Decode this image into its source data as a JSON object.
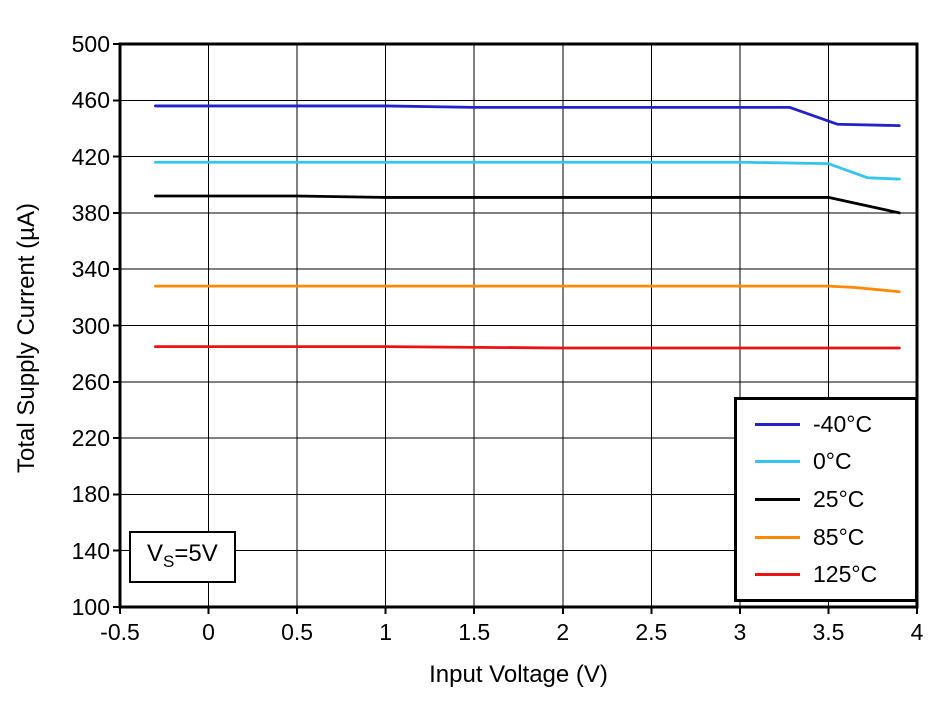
{
  "figure": {
    "background": "#ffffff",
    "axis_color": "#000000",
    "grid_color": "#000000"
  },
  "chart_data": {
    "type": "line",
    "title": "",
    "xlabel": "Input Voltage (V)",
    "ylabel": "Total Supply Current (µA)",
    "xlim": [
      -0.5,
      4
    ],
    "ylim": [
      100,
      500
    ],
    "xtick_values": [
      -0.5,
      0,
      0.5,
      1,
      1.5,
      2,
      2.5,
      3,
      3.5,
      4
    ],
    "xtick_labels": [
      "-0.5",
      "0",
      "0.5",
      "1",
      "1.5",
      "2",
      "2.5",
      "3",
      "3.5",
      "4"
    ],
    "ytick_values": [
      100,
      140,
      180,
      220,
      260,
      300,
      340,
      380,
      420,
      460,
      500
    ],
    "ytick_labels": [
      "100",
      "140",
      "180",
      "220",
      "260",
      "300",
      "340",
      "380",
      "420",
      "460",
      "500"
    ],
    "grid": true,
    "legend_position": "bottom-right",
    "annotation": {
      "prefix": "V",
      "sub": "S",
      "suffix": "=5V"
    },
    "series": [
      {
        "name": "-40°C",
        "color": "#2222CC",
        "x": [
          -0.3,
          0,
          0.5,
          1,
          1.5,
          2,
          2.5,
          3,
          3.28,
          3.55,
          3.9
        ],
        "y": [
          456,
          456,
          456,
          456,
          455,
          455,
          455,
          455,
          455,
          443,
          442
        ]
      },
      {
        "name": "0°C",
        "color": "#33C4F0",
        "x": [
          -0.3,
          0,
          0.5,
          1,
          1.5,
          2,
          2.5,
          3,
          3.5,
          3.72,
          3.9
        ],
        "y": [
          416,
          416,
          416,
          416,
          416,
          416,
          416,
          416,
          415,
          405,
          404
        ]
      },
      {
        "name": "25°C",
        "color": "#000000",
        "x": [
          -0.3,
          0,
          0.5,
          1,
          1.5,
          2,
          2.5,
          3,
          3.5,
          3.9
        ],
        "y": [
          392,
          392,
          392,
          391,
          391,
          391,
          391,
          391,
          391,
          380
        ]
      },
      {
        "name": "85°C",
        "color": "#FF8A00",
        "x": [
          -0.3,
          0,
          0.5,
          1,
          1.5,
          2,
          2.5,
          3,
          3.5,
          3.65,
          3.9
        ],
        "y": [
          328,
          328,
          328,
          328,
          328,
          328,
          328,
          328,
          328,
          327,
          324
        ]
      },
      {
        "name": "125°C",
        "color": "#EE1111",
        "x": [
          -0.3,
          0,
          1,
          2,
          3,
          3.9
        ],
        "y": [
          285,
          285,
          285,
          284,
          284,
          284
        ]
      }
    ]
  }
}
